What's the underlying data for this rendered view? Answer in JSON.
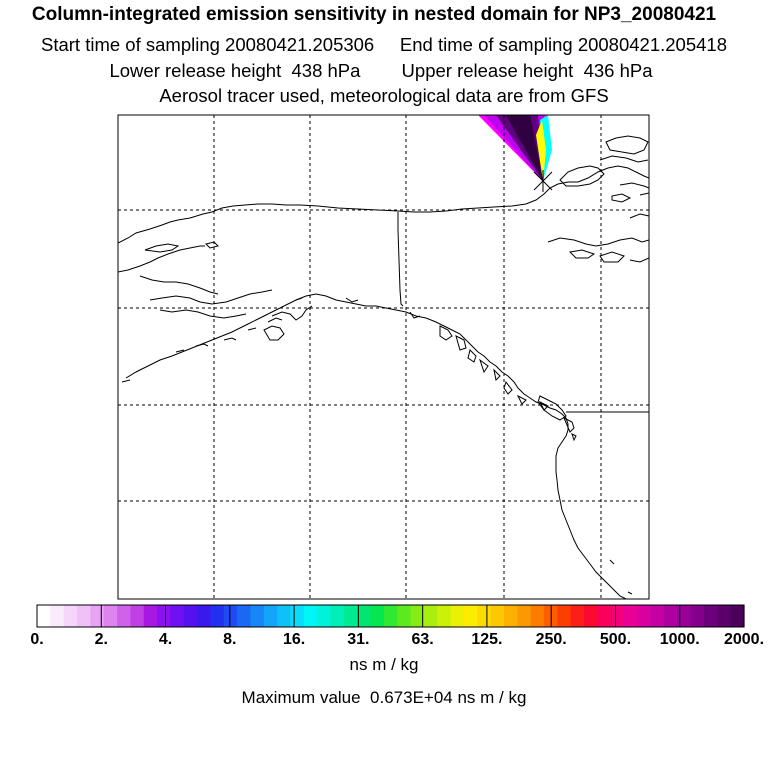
{
  "header": {
    "title": "Column-integrated emission sensitivity in nested domain for NP3_20080421",
    "sampling": "Start time of sampling 20080421.205306     End time of sampling 20080421.205418",
    "release": "Lower release height  438 hPa        Upper release height  436 hPa",
    "tracer": "Aerosol tracer used, meteorological data are from GFS"
  },
  "legend": {
    "labels": [
      "0.",
      "2.",
      "4.",
      "8.",
      "16.",
      "31.",
      "63.",
      "125.",
      "250.",
      "500.",
      "1000.",
      "2000."
    ],
    "colors": [
      "#ffffff",
      "#fbeafd",
      "#f6d6fb",
      "#f0c0f8",
      "#e8a3f4",
      "#dd84ef",
      "#cf62ea",
      "#c040e6",
      "#a818e2",
      "#8c10f0",
      "#6e10f2",
      "#5412f0",
      "#3a18ee",
      "#2430f0",
      "#1e4cf2",
      "#1a68f4",
      "#1886f6",
      "#14a4f8",
      "#10c0fa",
      "#0adcfc",
      "#00f6f6",
      "#00f2d8",
      "#00eeb8",
      "#00ea94",
      "#00e670",
      "#06e650",
      "#30e830",
      "#5cea1e",
      "#86ec16",
      "#aaee10",
      "#ccf008",
      "#ecf004",
      "#fcec00",
      "#fcdc00",
      "#fcc800",
      "#fcb000",
      "#fc9800",
      "#fc7c00",
      "#fc5e00",
      "#fc3e00",
      "#fc1e18",
      "#fc0830",
      "#fa0058",
      "#f4007c",
      "#ea0094",
      "#d800a0",
      "#c400a4",
      "#ae00a0",
      "#980098",
      "#82008c",
      "#6c007c",
      "#5a0068",
      "#4a0058"
    ],
    "units": "ns m / kg",
    "max_value": "Maximum value  0.673E+04 ns m / kg"
  },
  "map": {
    "plume_colors": [
      "#ff00ff",
      "#c000f0",
      "#600080",
      "#300040",
      "#00ffff",
      "#ffff00"
    ],
    "release_marker": "release-point"
  }
}
